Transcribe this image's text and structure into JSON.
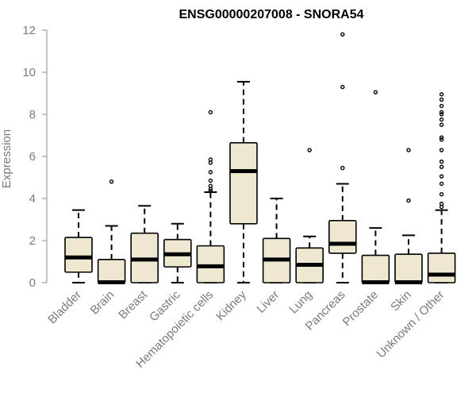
{
  "chart_data": {
    "type": "boxplot",
    "title": "ENSG00000207008 - SNORA54",
    "xlabel": "",
    "ylabel": "Expression",
    "ylim": [
      0,
      12
    ],
    "yticks": [
      0,
      2,
      4,
      6,
      8,
      10,
      12
    ],
    "grid": false,
    "colors": {
      "box_fill": "#efe8d0",
      "stroke": "#000000",
      "axis": "#8c8c8c",
      "label": "#7a7a7a"
    },
    "categories": [
      "Bladder",
      "Brain",
      "Breast",
      "Gastric",
      "Hematopoietic cells",
      "Kidney",
      "Liver",
      "Lung",
      "Pancreas",
      "Prostate",
      "Skin",
      "Unknown / Other"
    ],
    "boxes": [
      {
        "q1": 0.5,
        "median": 1.2,
        "q3": 2.15,
        "whisker_low": 0.0,
        "whisker_high": 3.45,
        "outliers": []
      },
      {
        "q1": 0.0,
        "median": 0.02,
        "q3": 1.1,
        "whisker_low": 0.0,
        "whisker_high": 2.7,
        "outliers": [
          4.8
        ]
      },
      {
        "q1": 0.0,
        "median": 1.1,
        "q3": 2.35,
        "whisker_low": 0.0,
        "whisker_high": 3.65,
        "outliers": []
      },
      {
        "q1": 0.75,
        "median": 1.35,
        "q3": 2.05,
        "whisker_low": 0.0,
        "whisker_high": 2.8,
        "outliers": []
      },
      {
        "q1": 0.0,
        "median": 0.78,
        "q3": 1.75,
        "whisker_low": 0.0,
        "whisker_high": 4.3,
        "outliers": [
          4.35,
          4.45,
          4.6,
          4.85,
          5.25,
          5.7,
          5.85,
          8.1
        ]
      },
      {
        "q1": 2.8,
        "median": 5.3,
        "q3": 6.65,
        "whisker_low": 0.0,
        "whisker_high": 9.55,
        "outliers": []
      },
      {
        "q1": 0.0,
        "median": 1.1,
        "q3": 2.1,
        "whisker_low": 0.0,
        "whisker_high": 4.0,
        "outliers": []
      },
      {
        "q1": 0.0,
        "median": 0.85,
        "q3": 1.65,
        "whisker_low": 0.0,
        "whisker_high": 2.2,
        "outliers": [
          6.3
        ]
      },
      {
        "q1": 1.4,
        "median": 1.85,
        "q3": 2.95,
        "whisker_low": 0.0,
        "whisker_high": 4.7,
        "outliers": [
          5.45,
          9.3,
          11.8
        ]
      },
      {
        "q1": 0.0,
        "median": 0.02,
        "q3": 1.3,
        "whisker_low": 0.0,
        "whisker_high": 2.6,
        "outliers": [
          9.05
        ]
      },
      {
        "q1": 0.0,
        "median": 0.02,
        "q3": 1.35,
        "whisker_low": 0.0,
        "whisker_high": 2.25,
        "outliers": [
          3.9,
          6.3
        ]
      },
      {
        "q1": 0.0,
        "median": 0.38,
        "q3": 1.4,
        "whisker_low": 0.0,
        "whisker_high": 3.45,
        "outliers": [
          3.6,
          3.75,
          4.2,
          4.7,
          5.05,
          5.5,
          5.75,
          6.3,
          6.8,
          6.9,
          7.5,
          7.75,
          8.0,
          8.1,
          8.4,
          8.7,
          8.95
        ]
      }
    ]
  }
}
